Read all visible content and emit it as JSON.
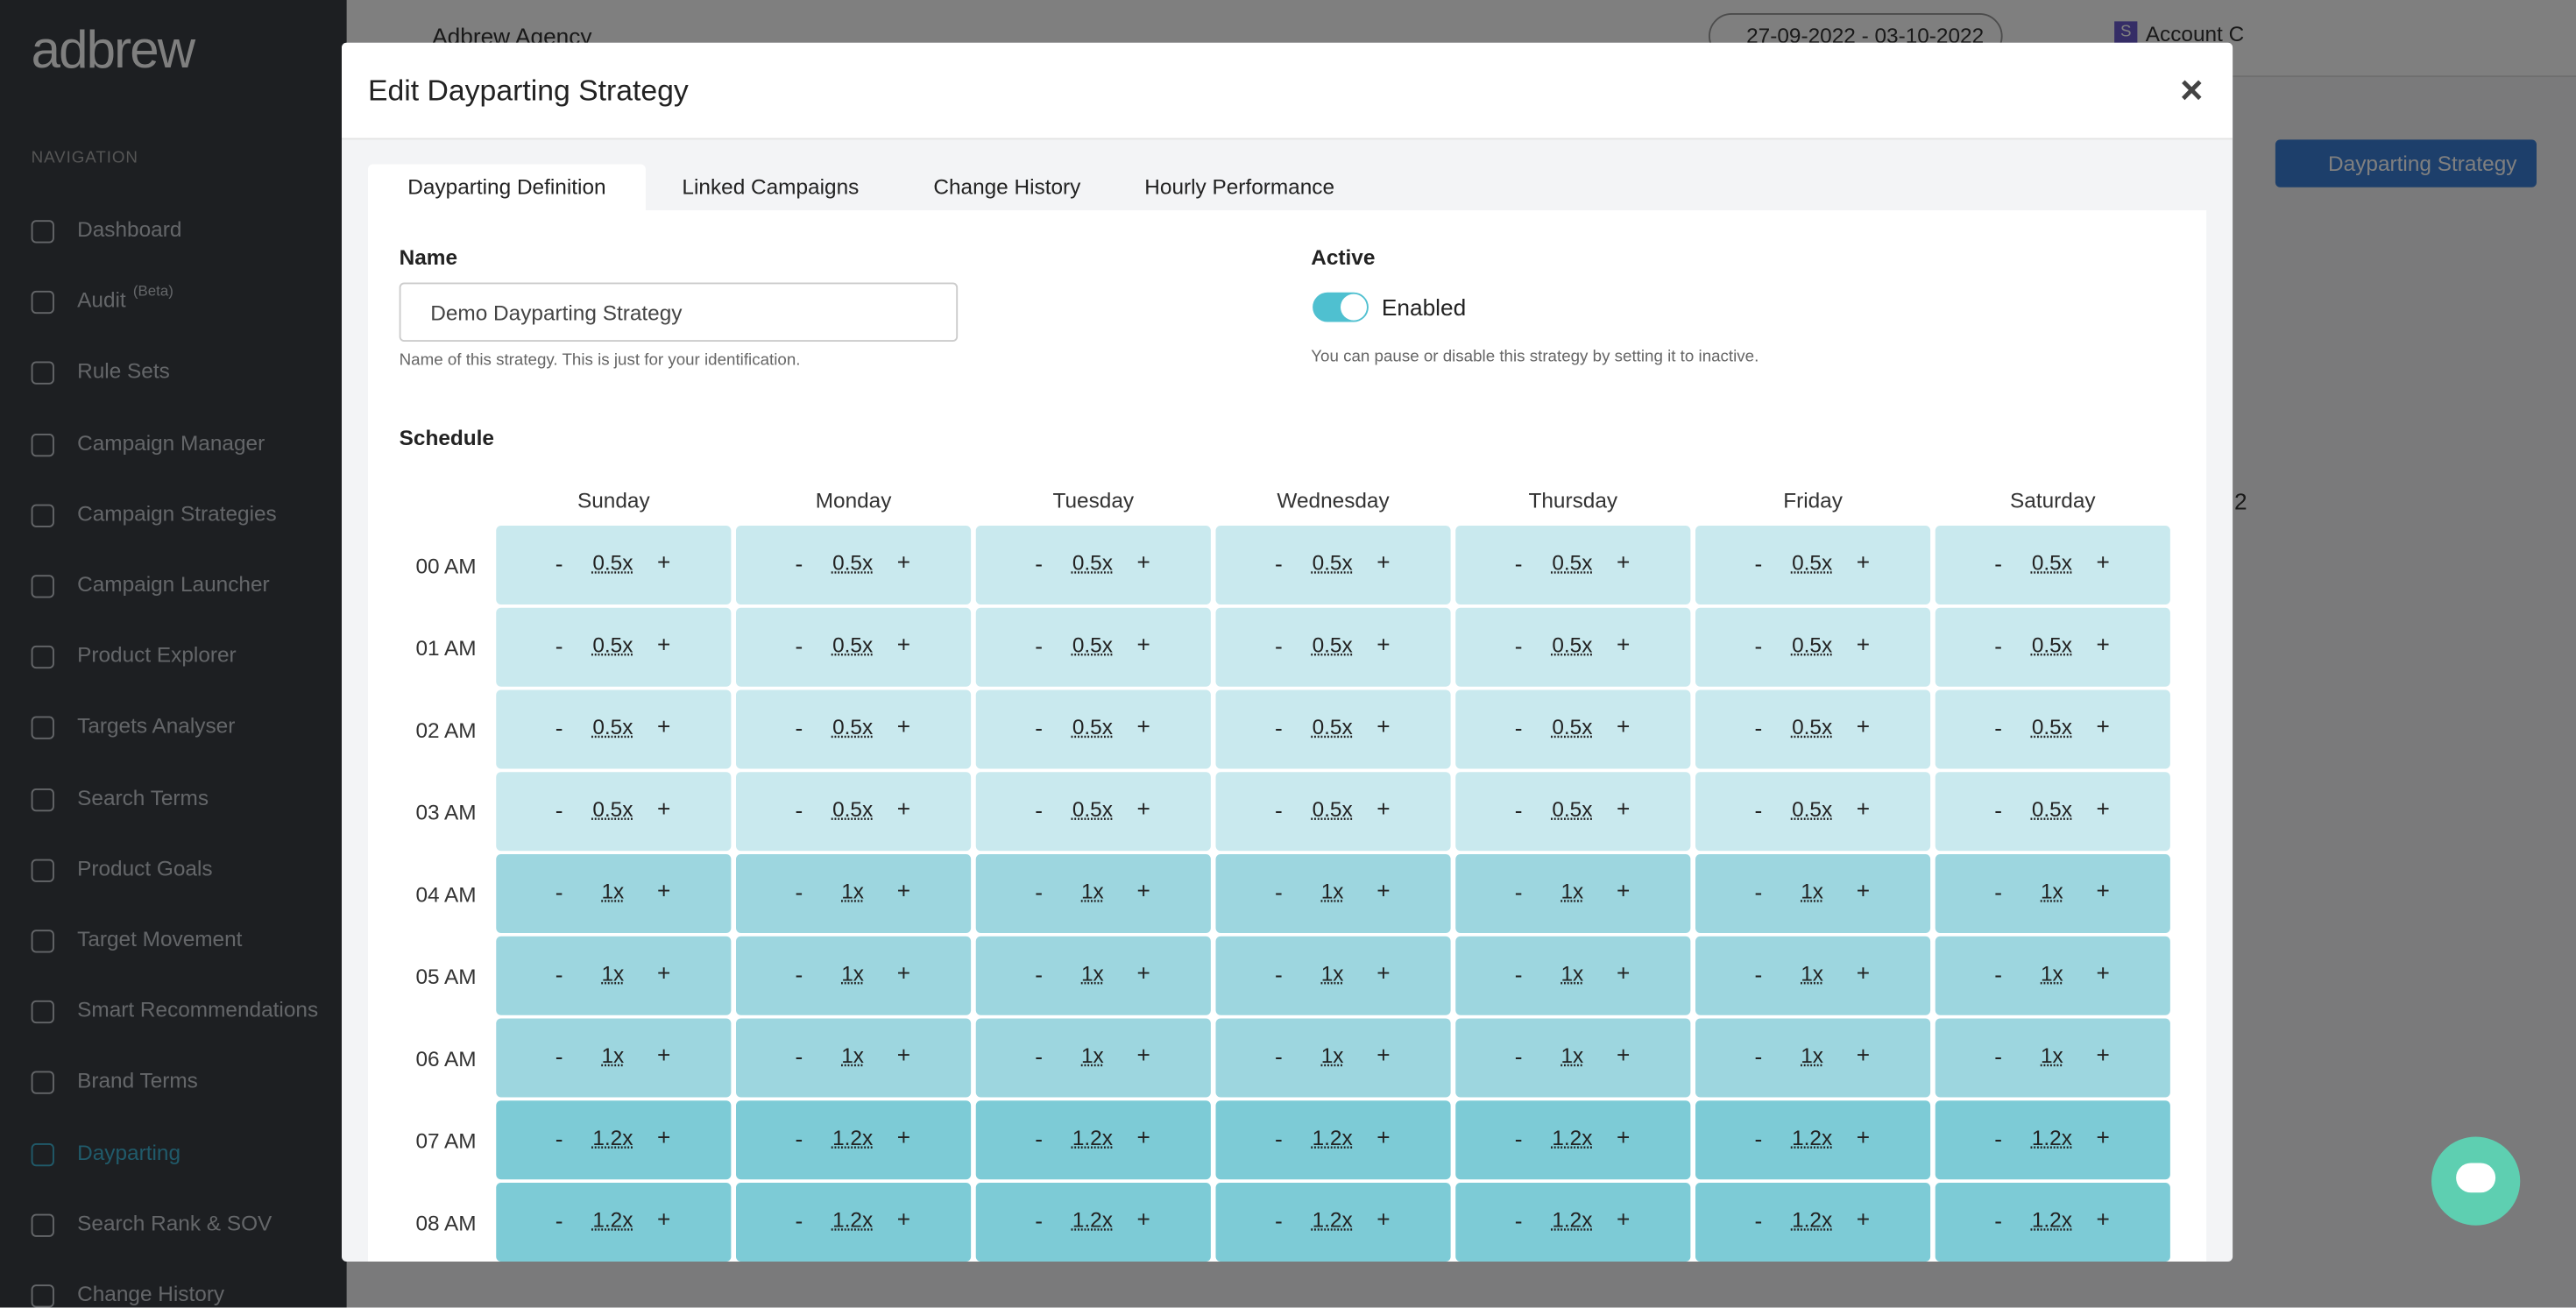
{
  "sidebar": {
    "logo": "adbrew",
    "section": "NAVIGATION",
    "active": "Dayparting",
    "items": [
      {
        "label": "Dashboard"
      },
      {
        "label": "Audit",
        "badge": "(Beta)"
      },
      {
        "label": "Rule Sets"
      },
      {
        "label": "Campaign Manager"
      },
      {
        "label": "Campaign Strategies"
      },
      {
        "label": "Campaign Launcher"
      },
      {
        "label": "Product Explorer"
      },
      {
        "label": "Targets Analyser"
      },
      {
        "label": "Search Terms"
      },
      {
        "label": "Product Goals"
      },
      {
        "label": "Target Movement"
      },
      {
        "label": "Smart Recommendations"
      },
      {
        "label": "Brand Terms"
      },
      {
        "label": "Dayparting"
      },
      {
        "label": "Search Rank & SOV"
      },
      {
        "label": "Change History"
      }
    ]
  },
  "topbar": {
    "agency": "Adbrew Agency",
    "date_range": "27-09-2022 - 03-10-2022",
    "account_initial": "S",
    "account": "Account C"
  },
  "background": {
    "button": "Dayparting Strategy",
    "pagination": "2"
  },
  "modal": {
    "title": "Edit Dayparting Strategy",
    "close": "×",
    "active_tab": 0,
    "tabs": [
      "Dayparting Definition",
      "Linked Campaigns",
      "Change History",
      "Hourly Performance"
    ],
    "name": {
      "label": "Name",
      "value": "Demo Dayparting Strategy",
      "help": "Name of this strategy. This is just for your identification."
    },
    "active": {
      "label": "Active",
      "status": "Enabled",
      "help": "You can pause or disable this strategy by setting it to inactive."
    },
    "schedule": {
      "label": "Schedule",
      "decrement": "-",
      "increment": "+",
      "colors": {
        "0.5x": "#c9e9ee",
        "1x": "#9dd6df",
        "1.2x": "#7dcbd6"
      },
      "days": [
        "Sunday",
        "Monday",
        "Tuesday",
        "Wednesday",
        "Thursday",
        "Friday",
        "Saturday"
      ],
      "hours": [
        "00 AM",
        "01 AM",
        "02 AM",
        "03 AM",
        "04 AM",
        "05 AM",
        "06 AM",
        "07 AM",
        "08 AM"
      ],
      "rows": [
        [
          "0.5x",
          "0.5x",
          "0.5x",
          "0.5x",
          "0.5x",
          "0.5x",
          "0.5x"
        ],
        [
          "0.5x",
          "0.5x",
          "0.5x",
          "0.5x",
          "0.5x",
          "0.5x",
          "0.5x"
        ],
        [
          "0.5x",
          "0.5x",
          "0.5x",
          "0.5x",
          "0.5x",
          "0.5x",
          "0.5x"
        ],
        [
          "0.5x",
          "0.5x",
          "0.5x",
          "0.5x",
          "0.5x",
          "0.5x",
          "0.5x"
        ],
        [
          "1x",
          "1x",
          "1x",
          "1x",
          "1x",
          "1x",
          "1x"
        ],
        [
          "1x",
          "1x",
          "1x",
          "1x",
          "1x",
          "1x",
          "1x"
        ],
        [
          "1x",
          "1x",
          "1x",
          "1x",
          "1x",
          "1x",
          "1x"
        ],
        [
          "1.2x",
          "1.2x",
          "1.2x",
          "1.2x",
          "1.2x",
          "1.2x",
          "1.2x"
        ],
        [
          "1.2x",
          "1.2x",
          "1.2x",
          "1.2x",
          "1.2x",
          "1.2x",
          "1.2x"
        ]
      ]
    }
  }
}
